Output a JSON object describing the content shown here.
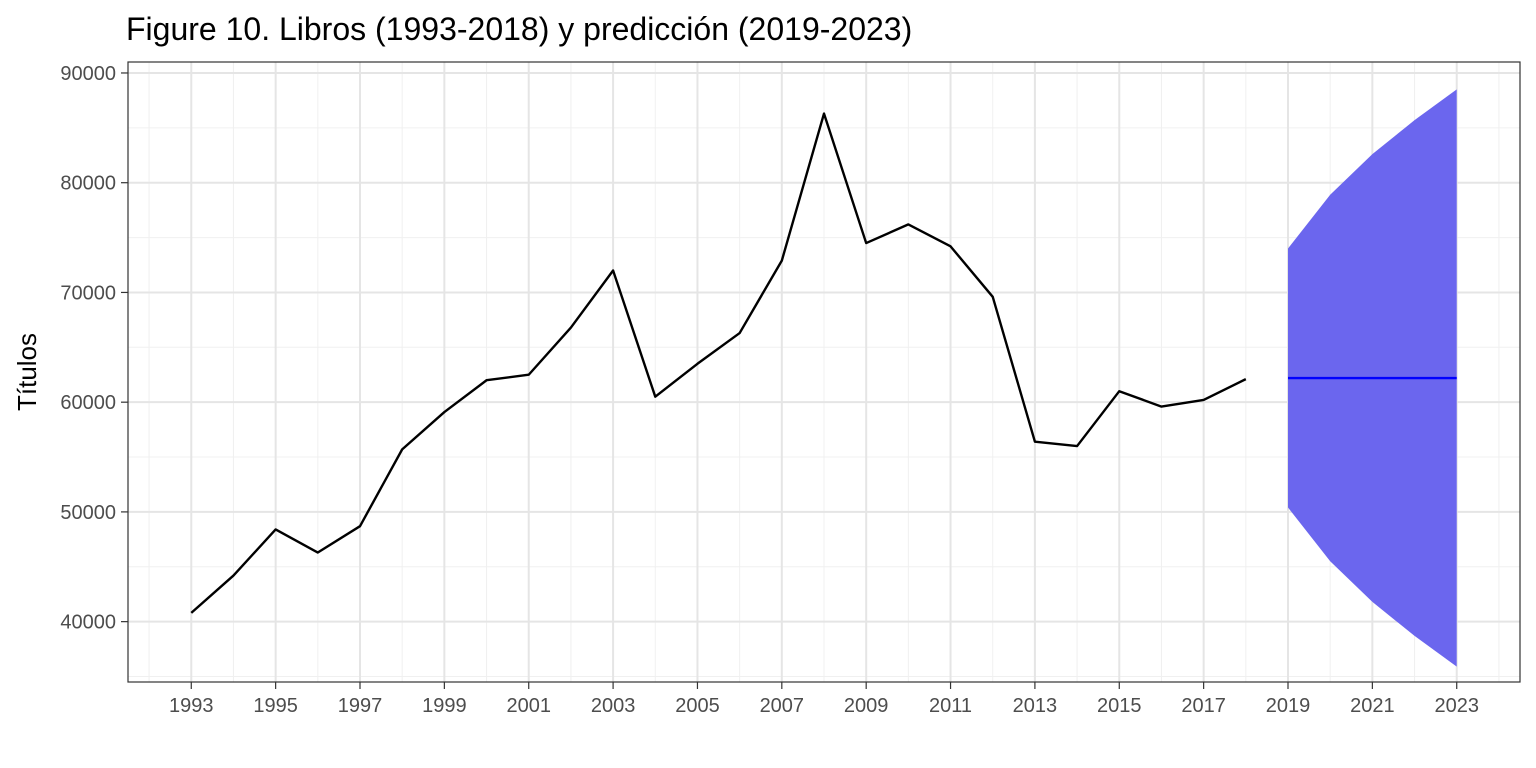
{
  "chart_data": {
    "type": "line",
    "title": "Figure 10. Libros (1993-2018) y predicción (2019-2023)",
    "xlabel": "",
    "ylabel": "Títulos",
    "xlim": [
      1991.5,
      2024.5
    ],
    "ylim": [
      34500,
      91000
    ],
    "x_ticks": [
      1993,
      1995,
      1997,
      1999,
      2001,
      2003,
      2005,
      2007,
      2009,
      2011,
      2013,
      2015,
      2017,
      2019,
      2021,
      2023
    ],
    "x_tick_labels": [
      "1993",
      "1995",
      "1997",
      "1999",
      "2001",
      "2003",
      "2005",
      "2007",
      "2009",
      "2011",
      "2013",
      "2015",
      "2017",
      "2019",
      "2021",
      "2023"
    ],
    "y_ticks": [
      40000,
      50000,
      60000,
      70000,
      80000,
      90000
    ],
    "y_tick_labels": [
      "40000",
      "50000",
      "60000",
      "70000",
      "80000",
      "90000"
    ],
    "grid": true,
    "series": [
      {
        "color": "#000000",
        "x": [
          1993,
          1994,
          1995,
          1996,
          1997,
          1998,
          1999,
          2000,
          2001,
          2002,
          2003,
          2004,
          2005,
          2006,
          2007,
          2008,
          2009,
          2010,
          2011,
          2012,
          2013,
          2014,
          2015,
          2016,
          2017,
          2018
        ],
        "y": [
          40800,
          44200,
          48400,
          46300,
          48700,
          55700,
          59100,
          62000,
          62500,
          66800,
          72000,
          60500,
          63500,
          66300,
          72900,
          86300,
          74500,
          76200,
          74200,
          69600,
          56400,
          56000,
          61000,
          59600,
          60200,
          62100
        ]
      }
    ],
    "forecast": {
      "line_color": "#0000ff",
      "band_color": "#6b66ee",
      "x": [
        2019,
        2020,
        2021,
        2022,
        2023
      ],
      "mean": [
        62200,
        62200,
        62200,
        62200,
        62200
      ],
      "lower": [
        50400,
        45500,
        41800,
        38700,
        35900
      ],
      "upper": [
        74000,
        78900,
        82600,
        85700,
        88500
      ]
    }
  }
}
